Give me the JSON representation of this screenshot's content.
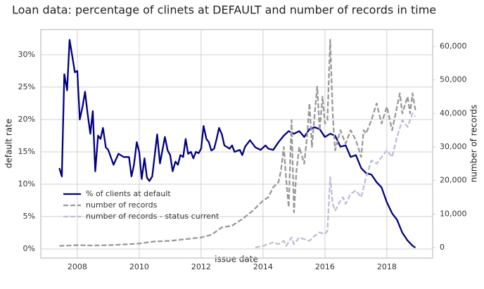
{
  "chart_data": {
    "type": "line",
    "title": "Loan data: percentage of clinets at DEFAULT and number of records in time",
    "x_label": "issue date",
    "y_label": "default rate",
    "y2_label": "number of records",
    "xlim": [
      2006.82,
      2019.48
    ],
    "xticks": [
      2008,
      2010,
      2012,
      2014,
      2016,
      2018
    ],
    "ylim": [
      -1.41,
      33.9
    ],
    "yticks": [
      {
        "value": 0,
        "label": "0%"
      },
      {
        "value": 5,
        "label": "5%"
      },
      {
        "value": 10,
        "label": "10%"
      },
      {
        "value": 15,
        "label": "15%"
      },
      {
        "value": 20,
        "label": "20%"
      },
      {
        "value": 25,
        "label": "25%"
      },
      {
        "value": 30,
        "label": "30%"
      }
    ],
    "y2lim": [
      -3147,
      65030
    ],
    "y2ticks": [
      0,
      {
        "value": 10000,
        "label": "10,000"
      },
      {
        "value": 20000,
        "label": "20,000"
      },
      {
        "value": 30000,
        "label": "30,000"
      },
      {
        "value": 40000,
        "label": "40,000"
      },
      {
        "value": 50000,
        "label": "50,000"
      },
      {
        "value": 60000,
        "label": "60,000"
      }
    ],
    "grid": true,
    "legend": "lower left",
    "series": [
      {
        "name": "% of clients at default",
        "color": "#000080",
        "dashed": false,
        "x": [
          2007.42,
          2007.5,
          2007.58,
          2007.67,
          2007.75,
          2007.83,
          2007.92,
          2008.0,
          2008.08,
          2008.17,
          2008.25,
          2008.33,
          2008.42,
          2008.5,
          2008.58,
          2008.67,
          2008.75,
          2008.83,
          2008.92,
          2009.0,
          2009.17,
          2009.33,
          2009.5,
          2009.67,
          2009.75,
          2009.83,
          2009.92,
          2010.0,
          2010.08,
          2010.17,
          2010.25,
          2010.33,
          2010.42,
          2010.58,
          2010.67,
          2010.83,
          2010.92,
          2011.0,
          2011.08,
          2011.17,
          2011.25,
          2011.33,
          2011.42,
          2011.5,
          2011.58,
          2011.67,
          2011.75,
          2011.83,
          2011.92,
          2012.0,
          2012.08,
          2012.17,
          2012.25,
          2012.33,
          2012.42,
          2012.5,
          2012.58,
          2012.67,
          2012.75,
          2012.92,
          2013.0,
          2013.08,
          2013.25,
          2013.33,
          2013.42,
          2013.58,
          2013.75,
          2013.92,
          2014.08,
          2014.17,
          2014.33,
          2014.5,
          2014.67,
          2014.83,
          2015.0,
          2015.17,
          2015.33,
          2015.5,
          2015.67,
          2015.83,
          2016.0,
          2016.17,
          2016.33,
          2016.5,
          2016.67,
          2016.83,
          2017.0,
          2017.17,
          2017.33,
          2017.5,
          2017.67,
          2017.83,
          2018.0,
          2018.17,
          2018.33,
          2018.5,
          2018.67,
          2018.83,
          2018.92
        ],
        "values": [
          12.5,
          11.2,
          27,
          24.5,
          32.3,
          30,
          27.3,
          27.5,
          20,
          22,
          24.3,
          21,
          17.8,
          21.3,
          12,
          17.5,
          17,
          18.7,
          15.7,
          15.3,
          13,
          14.7,
          14.2,
          14.2,
          11.2,
          13,
          16.5,
          15,
          10.8,
          14,
          11,
          10.5,
          11.2,
          17.7,
          13.2,
          17.3,
          15.2,
          14.5,
          12,
          13.5,
          13,
          14.5,
          14.2,
          17,
          14.7,
          15,
          14,
          15,
          14.8,
          15.5,
          19,
          17,
          16.5,
          15.2,
          15.5,
          17,
          18.7,
          17.7,
          16,
          15.5,
          16,
          15,
          15.3,
          14.5,
          15.8,
          16.8,
          15.7,
          15.3,
          16,
          15.5,
          15.3,
          16.5,
          17.5,
          18.2,
          17.8,
          18.2,
          17.3,
          18.5,
          18.8,
          18.5,
          17.3,
          17.8,
          17.5,
          15.8,
          16,
          14.2,
          14.5,
          12.5,
          11.7,
          11.5,
          10.3,
          9.5,
          7.2,
          5.5,
          4.5,
          2.5,
          1.3,
          0.5,
          0.2
        ]
      },
      {
        "name": "number of records",
        "color": "#999999",
        "dashed": true,
        "axis": "y2",
        "x": [
          2007.42,
          2008.0,
          2008.5,
          2009.0,
          2009.5,
          2010.0,
          2010.5,
          2011.0,
          2011.5,
          2012.0,
          2012.33,
          2012.67,
          2013.0,
          2013.33,
          2013.67,
          2014.0,
          2014.17,
          2014.33,
          2014.5,
          2014.58,
          2014.67,
          2014.75,
          2014.83,
          2014.92,
          2015.0,
          2015.08,
          2015.17,
          2015.33,
          2015.42,
          2015.5,
          2015.58,
          2015.67,
          2015.75,
          2015.83,
          2015.92,
          2016.0,
          2016.08,
          2016.17,
          2016.25,
          2016.33,
          2016.5,
          2016.58,
          2016.67,
          2016.83,
          2017.0,
          2017.17,
          2017.25,
          2017.33,
          2017.5,
          2017.67,
          2017.83,
          2018.0,
          2018.17,
          2018.33,
          2018.42,
          2018.5,
          2018.67,
          2018.75,
          2018.83,
          2018.92
        ],
        "values": [
          500,
          700,
          600,
          700,
          900,
          1200,
          1800,
          2000,
          2500,
          3000,
          3800,
          6000,
          6500,
          8500,
          11000,
          14000,
          15000,
          18000,
          19500,
          23000,
          30000,
          20000,
          12000,
          38000,
          10500,
          23000,
          30000,
          25000,
          33000,
          43000,
          30000,
          40000,
          48000,
          35000,
          45000,
          37000,
          38000,
          62000,
          40000,
          29000,
          35000,
          33000,
          31000,
          35000,
          32000,
          27000,
          35000,
          34000,
          38000,
          43000,
          37000,
          42000,
          35000,
          42000,
          46000,
          40000,
          45000,
          40000,
          46000,
          41000
        ]
      },
      {
        "name": "number of records - status current",
        "color": "#bdbddb",
        "dashed": true,
        "axis": "y2",
        "x": [
          2013.75,
          2014.0,
          2014.17,
          2014.33,
          2014.5,
          2014.67,
          2014.75,
          2014.92,
          2015.0,
          2015.17,
          2015.33,
          2015.5,
          2015.67,
          2015.83,
          2016.0,
          2016.08,
          2016.17,
          2016.25,
          2016.33,
          2016.5,
          2016.58,
          2016.67,
          2016.83,
          2017.0,
          2017.17,
          2017.33,
          2017.5,
          2017.67,
          2017.83,
          2018.0,
          2018.17,
          2018.33,
          2018.5,
          2018.67,
          2018.83,
          2018.92
        ],
        "values": [
          0,
          500,
          1000,
          1500,
          1000,
          2000,
          500,
          3000,
          1000,
          3000,
          2500,
          2000,
          3500,
          4500,
          4000,
          5000,
          21000,
          13000,
          11000,
          14000,
          15000,
          13000,
          16000,
          17000,
          15000,
          21000,
          26000,
          25000,
          27000,
          29000,
          27000,
          33000,
          38000,
          36000,
          40000,
          39000
        ]
      }
    ]
  }
}
